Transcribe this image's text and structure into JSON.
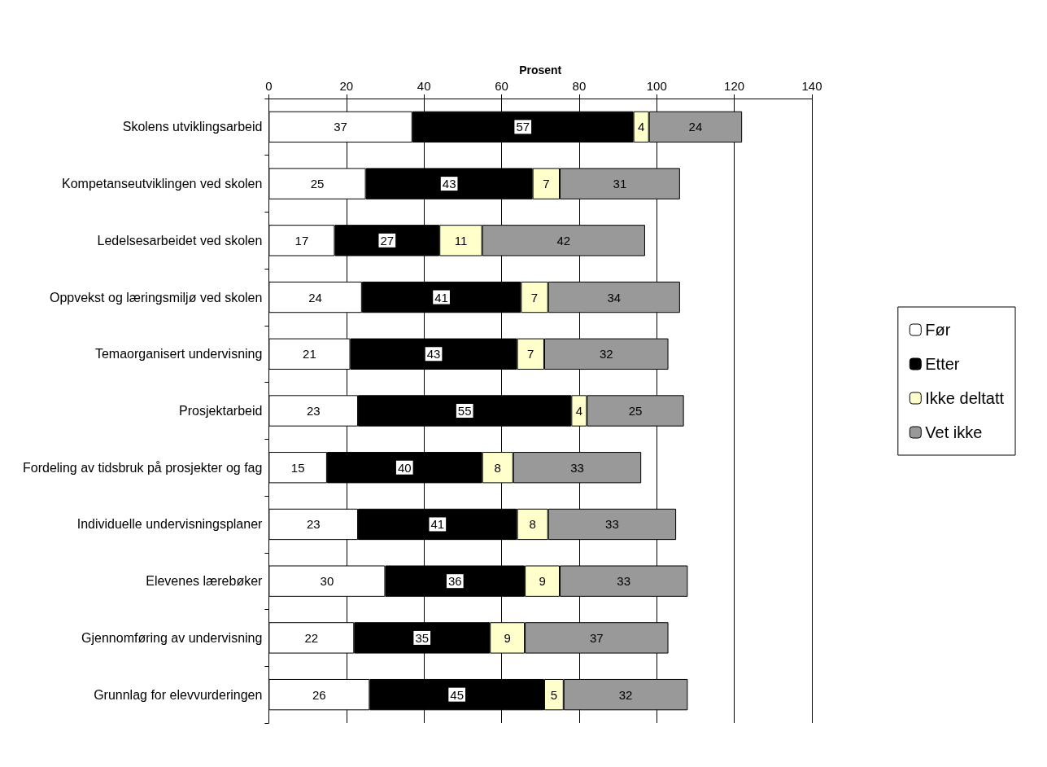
{
  "chart_data": {
    "type": "bar",
    "orientation": "horizontal",
    "stacked": true,
    "xlabel": "Prosent",
    "categories": [
      "Skolens utviklingsarbeid",
      "Kompetanseutviklingen ved skolen",
      "Ledelsesarbeidet ved skolen",
      "Oppvekst og læringsmiljø ved skolen",
      "Temaorganisert undervisning",
      "Prosjektarbeid",
      "Fordeling av tidsbruk på prosjekter og fag",
      "Individuelle undervisningsplaner",
      "Elevenes lærebøker",
      "Gjennomføring av undervisning",
      "Grunnlag for elevvurderingen"
    ],
    "series": [
      {
        "name": "Før",
        "color": "#ffffff",
        "values": [
          37,
          25,
          17,
          24,
          21,
          23,
          15,
          23,
          30,
          22,
          26
        ]
      },
      {
        "name": "Etter",
        "color": "#000000",
        "values": [
          57,
          43,
          27,
          41,
          43,
          55,
          40,
          41,
          36,
          35,
          45
        ]
      },
      {
        "name": "Ikke deltatt",
        "color": "#ffffcc",
        "values": [
          4,
          7,
          11,
          7,
          7,
          4,
          8,
          8,
          9,
          9,
          5
        ]
      },
      {
        "name": "Vet ikke",
        "color": "#999999",
        "values": [
          24,
          31,
          42,
          34,
          32,
          25,
          33,
          33,
          33,
          37,
          32
        ]
      }
    ],
    "xlim": [
      0,
      140
    ],
    "xticks": [
      0,
      20,
      40,
      60,
      80,
      100,
      120,
      140
    ],
    "grid": "x",
    "legend": "right",
    "data_labels": true
  }
}
